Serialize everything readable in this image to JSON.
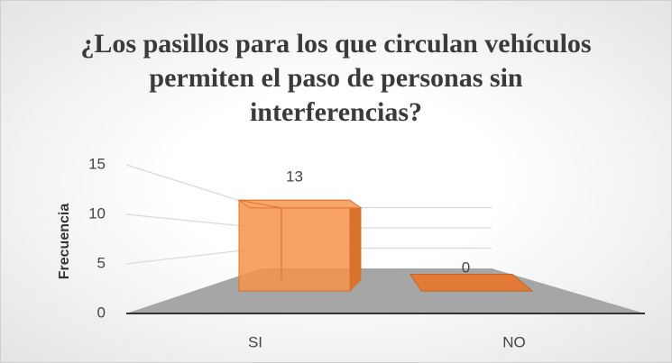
{
  "chart_data": {
    "type": "bar3d",
    "title": "¿Los pasillos para los que circulan vehículos permiten el paso de personas sin interferencias?",
    "y_label": "Frecuencia",
    "categories": [
      "SI",
      "NO"
    ],
    "values": [
      13,
      0
    ],
    "color": "#f4934a",
    "ylim": [
      0,
      15
    ],
    "yticks": [
      0,
      5,
      10,
      15
    ],
    "grid": true
  }
}
